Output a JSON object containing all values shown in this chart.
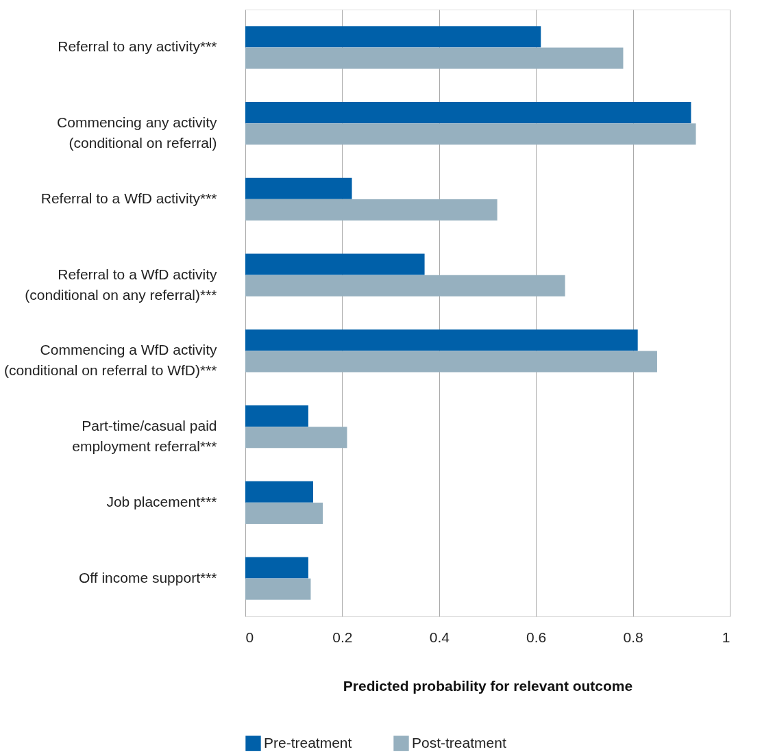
{
  "chart_data": {
    "type": "bar",
    "orientation": "horizontal",
    "xlabel": "Predicted probability for relevant outcome",
    "categories": [
      "Referral to any activity***",
      "Commencing any activity \n(conditional on referral)",
      "Referral to a WfD activity***",
      "Referral to a WfD activity \n(conditional on any referral)***",
      "Commencing a WfD activity \n(conditional on referral to WfD)***",
      "Part-time/casual paid \nemployment referral***",
      "Job placement***",
      "Off income support***"
    ],
    "series": [
      {
        "name": "Pre-treatment",
        "color": "#0060a9",
        "values": [
          0.61,
          0.92,
          0.22,
          0.37,
          0.81,
          0.13,
          0.14,
          0.13
        ]
      },
      {
        "name": "Post-treatment",
        "color": "#96b0bf",
        "values": [
          0.78,
          0.93,
          0.52,
          0.66,
          0.85,
          0.21,
          0.16,
          0.135
        ]
      }
    ],
    "xlim": [
      0,
      1
    ],
    "xticks": [
      0,
      0.2,
      0.4,
      0.6,
      0.8,
      1
    ],
    "grid": "x",
    "legend": "bottom"
  }
}
